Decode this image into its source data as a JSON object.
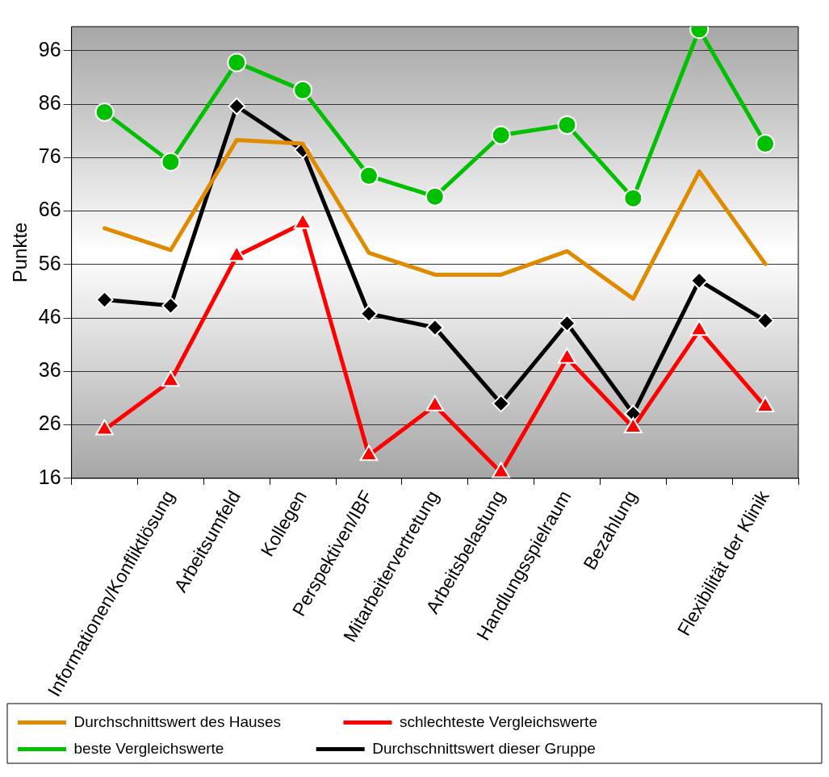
{
  "chart_data": {
    "type": "line",
    "ylabel": "Punkte",
    "categories": [
      null,
      "Informationen/Konfliktlösung",
      "Arbeitsumfeld",
      "Kollegen",
      "Perspektiven/IBF",
      "Mitarbeitervertretung",
      "Arbeitsbelastung",
      "Handlungsspielraum",
      "Bezahlung",
      null,
      "Flexibilität der Klinik"
    ],
    "series": [
      {
        "name": "Durchschnittswert des Hauses",
        "color": "#e08a00",
        "marker": "none",
        "values": [
          62.8,
          58.7,
          79.3,
          78.6,
          58.2,
          54.1,
          54.1,
          58.5,
          49.6,
          73.4,
          56.1
        ]
      },
      {
        "name": "schlechteste Vergleichswerte",
        "color": "#ff0000",
        "marker": "triangle",
        "values": [
          25.1,
          34.2,
          57.6,
          63.7,
          20.3,
          29.6,
          17.1,
          38.5,
          25.5,
          43.7,
          29.4
        ]
      },
      {
        "name": "beste Vergleichswerte",
        "color": "#00c000",
        "marker": "circle",
        "values": [
          84.5,
          75.2,
          93.8,
          88.6,
          72.6,
          68.7,
          80.2,
          82.1,
          68.4,
          100,
          78.6
        ]
      },
      {
        "name": "Durchschnittswert dieser Gruppe",
        "color": "#000000",
        "marker": "diamond",
        "values": [
          49.4,
          48.3,
          85.6,
          77.4,
          46.8,
          44.2,
          30.0,
          45.0,
          28.1,
          53.0,
          45.5
        ]
      }
    ],
    "ylim": [
      16,
      100.5
    ],
    "yticks": [
      16,
      26,
      36,
      46,
      56,
      66,
      76,
      86,
      96
    ],
    "grid": "y",
    "legend": "bottom",
    "line_style": "solid"
  }
}
